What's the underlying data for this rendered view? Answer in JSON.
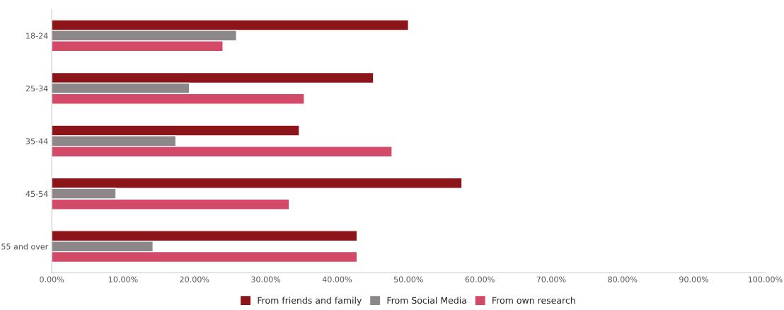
{
  "chart_data": {
    "type": "bar",
    "orientation": "horizontal",
    "categories": [
      "18-24",
      "25-34",
      "35-44",
      "45-54",
      "55 and over"
    ],
    "series": [
      {
        "name": "From friends and family",
        "color": "#8b1518",
        "values": [
          50.0,
          45.1,
          34.7,
          57.5,
          42.8
        ]
      },
      {
        "name": "From Social Media",
        "color": "#8d8789",
        "values": [
          25.9,
          19.3,
          17.4,
          9.0,
          14.2
        ]
      },
      {
        "name": "From own research",
        "color": "#d24a68",
        "values": [
          24.0,
          35.4,
          47.7,
          33.3,
          42.8
        ]
      }
    ],
    "xlim": [
      0,
      100
    ],
    "xticks": [
      {
        "value": 0,
        "label": "0.00%"
      },
      {
        "value": 10,
        "label": "10.00%"
      },
      {
        "value": 20,
        "label": "20.00%"
      },
      {
        "value": 30,
        "label": "30.00%"
      },
      {
        "value": 40,
        "label": "40.00%"
      },
      {
        "value": 50,
        "label": "50.00%"
      },
      {
        "value": 60,
        "label": "60.00%"
      },
      {
        "value": 70,
        "label": "70.00%"
      },
      {
        "value": 80,
        "label": "80.00%"
      },
      {
        "value": 90,
        "label": "90.00%"
      },
      {
        "value": 100,
        "label": "100.00%"
      }
    ],
    "grid": false,
    "legend": "bottom"
  }
}
